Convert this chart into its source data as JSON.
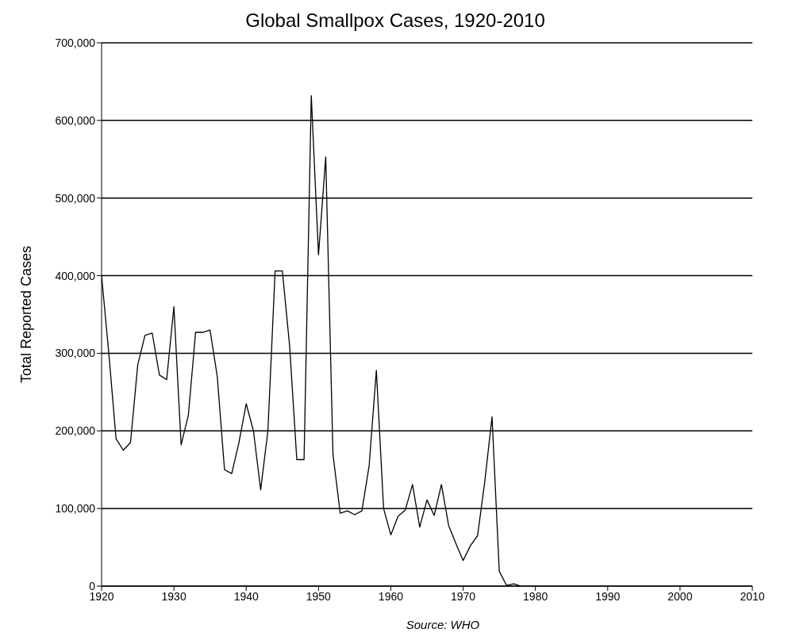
{
  "chart_data": {
    "type": "line",
    "title": "Global Smallpox Cases, 1920-2010",
    "ylabel": "Total Reported Cases",
    "annotations": [
      "Source: WHO"
    ],
    "x": [
      1920,
      1921,
      1922,
      1923,
      1924,
      1925,
      1926,
      1927,
      1928,
      1929,
      1930,
      1931,
      1932,
      1933,
      1934,
      1935,
      1936,
      1937,
      1938,
      1939,
      1940,
      1941,
      1942,
      1943,
      1944,
      1945,
      1946,
      1947,
      1948,
      1949,
      1950,
      1951,
      1952,
      1953,
      1954,
      1955,
      1956,
      1957,
      1958,
      1959,
      1960,
      1961,
      1962,
      1963,
      1964,
      1965,
      1966,
      1967,
      1968,
      1969,
      1970,
      1971,
      1972,
      1973,
      1974,
      1975,
      1976,
      1977,
      1978
    ],
    "series": [
      {
        "color": "#000000",
        "values": [
          400000,
          300000,
          190000,
          175000,
          185000,
          285000,
          323000,
          326000,
          272000,
          266000,
          360000,
          182000,
          220000,
          327000,
          327000,
          330000,
          270000,
          150000,
          145000,
          185000,
          235000,
          200000,
          124000,
          200000,
          406000,
          406000,
          310000,
          163000,
          163000,
          632000,
          427000,
          553000,
          170000,
          94000,
          97000,
          92000,
          97000,
          155000,
          278000,
          100000,
          66000,
          90000,
          98000,
          131000,
          76000,
          111000,
          91000,
          131000,
          78000,
          55000,
          33000,
          52000,
          65000,
          135000,
          218000,
          19000,
          1000,
          3000,
          0
        ]
      }
    ],
    "xlim": [
      1920,
      2010
    ],
    "xticks": [
      1920,
      1930,
      1940,
      1950,
      1960,
      1970,
      1980,
      1990,
      2000,
      2010
    ],
    "ylim": [
      0,
      700000
    ],
    "yticks": [
      {
        "value": 0,
        "label": "0"
      },
      {
        "value": 100000,
        "label": "100,000"
      },
      {
        "value": 200000,
        "label": "200,000"
      },
      {
        "value": 300000,
        "label": "300,000"
      },
      {
        "value": 400000,
        "label": "400,000"
      },
      {
        "value": 500000,
        "label": "500,000"
      },
      {
        "value": 600000,
        "label": "600,000"
      },
      {
        "value": 700000,
        "label": "700,000"
      }
    ],
    "grid": "y",
    "marker": "none",
    "line_style": "solid"
  }
}
